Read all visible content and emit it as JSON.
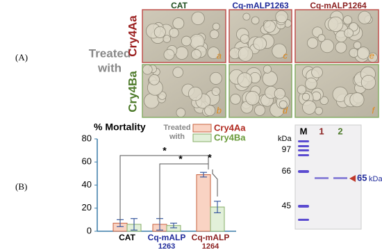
{
  "panel_a": {
    "label": "(A)",
    "columns": [
      "CAT",
      "Cq-mALP1263",
      "Cq-mALP1264"
    ],
    "side_label": [
      "Treated",
      "with"
    ],
    "rows": [
      "Cry4Aa",
      "Cry4Ba"
    ],
    "image_letters": [
      [
        "a",
        "c",
        "e"
      ],
      [
        "b",
        "d",
        "f"
      ]
    ]
  },
  "panel_b": {
    "label": "(B)"
  },
  "chart_data": {
    "type": "bar",
    "title": "% Mortality",
    "categories": [
      [
        "CAT"
      ],
      [
        "Cq-mALP",
        "1263"
      ],
      [
        "Cq-mALP",
        "1264"
      ]
    ],
    "legend_title": [
      "Treated",
      "with"
    ],
    "series": [
      {
        "name": "Cry4Aa",
        "color": "#f9d3c3",
        "edge": "#c8603e",
        "values": [
          7,
          6,
          49
        ],
        "errors": [
          3,
          5,
          2
        ]
      },
      {
        "name": "Cry4Ba",
        "color": "#e2f0d9",
        "edge": "#86ad66",
        "values": [
          6,
          5,
          21
        ],
        "errors": [
          5,
          2,
          5
        ]
      }
    ],
    "ylim": [
      0,
      80
    ],
    "yticks": [
      0,
      20,
      40,
      60,
      80
    ],
    "annotations": [
      "*",
      "*",
      "*"
    ]
  },
  "gel": {
    "lanes": [
      "M",
      "1",
      "2"
    ],
    "unit": "kDa",
    "markers": [
      "97",
      "66",
      "45"
    ],
    "band_label": "65",
    "band_unit": "kDa"
  }
}
